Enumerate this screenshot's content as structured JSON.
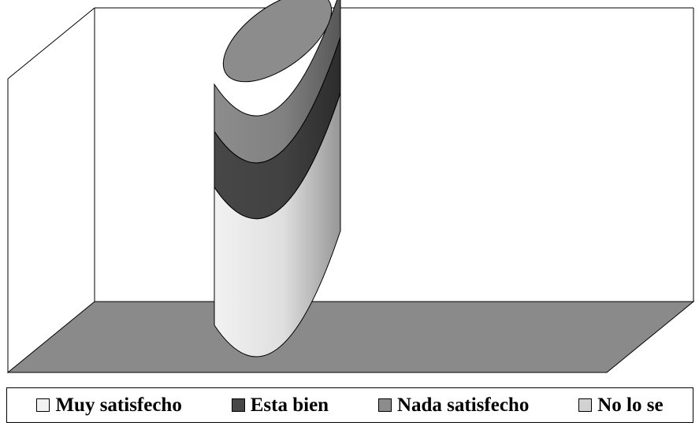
{
  "chart_data": {
    "type": "bar",
    "style": "3d-stacked-cylinder",
    "title": "",
    "xlabel": "",
    "ylabel": "",
    "grid": false,
    "legend_position": "bottom",
    "categories": [
      ""
    ],
    "ylim": [
      0,
      100
    ],
    "series": [
      {
        "name": "Muy satisfecho",
        "values": [
          47
        ],
        "color": "#f2f2f2"
      },
      {
        "name": "Esta bien",
        "values": [
          19
        ],
        "color": "#474747"
      },
      {
        "name": "Nada satisfecho",
        "values": [
          16
        ],
        "color": "#8c8c8c"
      },
      {
        "name": "No lo se",
        "values": [
          0
        ],
        "color": "#d2d2d2"
      }
    ],
    "floor_color": "#8a8a8a"
  }
}
